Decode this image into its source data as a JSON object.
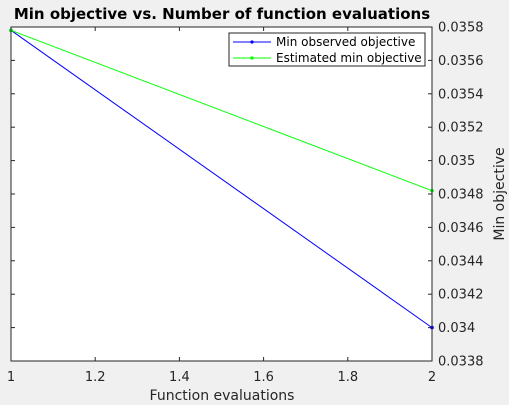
{
  "chart_data": {
    "type": "line",
    "title": "Min objective vs. Number of function evaluations",
    "xlabel": "Function evaluations",
    "ylabel": "Min objective",
    "xlim": [
      1,
      2
    ],
    "ylim": [
      0.0338,
      0.0358
    ],
    "x_ticks": [
      "1",
      "1.2",
      "1.4",
      "1.6",
      "1.8",
      "2"
    ],
    "x_tick_values": [
      1,
      1.2,
      1.4,
      1.6,
      1.8,
      2
    ],
    "y_ticks": [
      "0.0338",
      "0.034",
      "0.0342",
      "0.0344",
      "0.0346",
      "0.0348",
      "0.035",
      "0.0352",
      "0.0354",
      "0.0356",
      "0.0358"
    ],
    "y_tick_values": [
      0.0338,
      0.034,
      0.0342,
      0.0344,
      0.0346,
      0.0348,
      0.035,
      0.0352,
      0.0354,
      0.0356,
      0.0358
    ],
    "y_axis_side": "right",
    "grid": false,
    "legend_position": "top-right",
    "series": [
      {
        "name": "Min observed objective",
        "color": "#0000ff",
        "x": [
          1,
          2
        ],
        "values": [
          0.03578,
          0.034
        ]
      },
      {
        "name": "Estimated min objective",
        "color": "#00ff00",
        "x": [
          1,
          2
        ],
        "values": [
          0.03578,
          0.03482
        ]
      }
    ]
  }
}
